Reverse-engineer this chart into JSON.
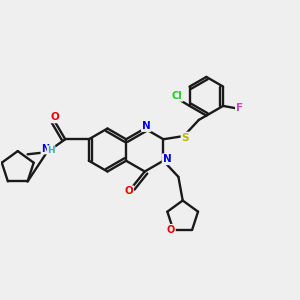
{
  "background_color": "#efefef",
  "bond_color": "#1a1a1a",
  "atom_colors": {
    "N": "#0000ee",
    "O": "#ee0000",
    "S": "#b8b800",
    "Cl": "#22cc22",
    "F": "#cc44cc",
    "H": "#44aaaa",
    "C": "#1a1a1a"
  },
  "figsize": [
    3.0,
    3.0
  ],
  "dpi": 100
}
